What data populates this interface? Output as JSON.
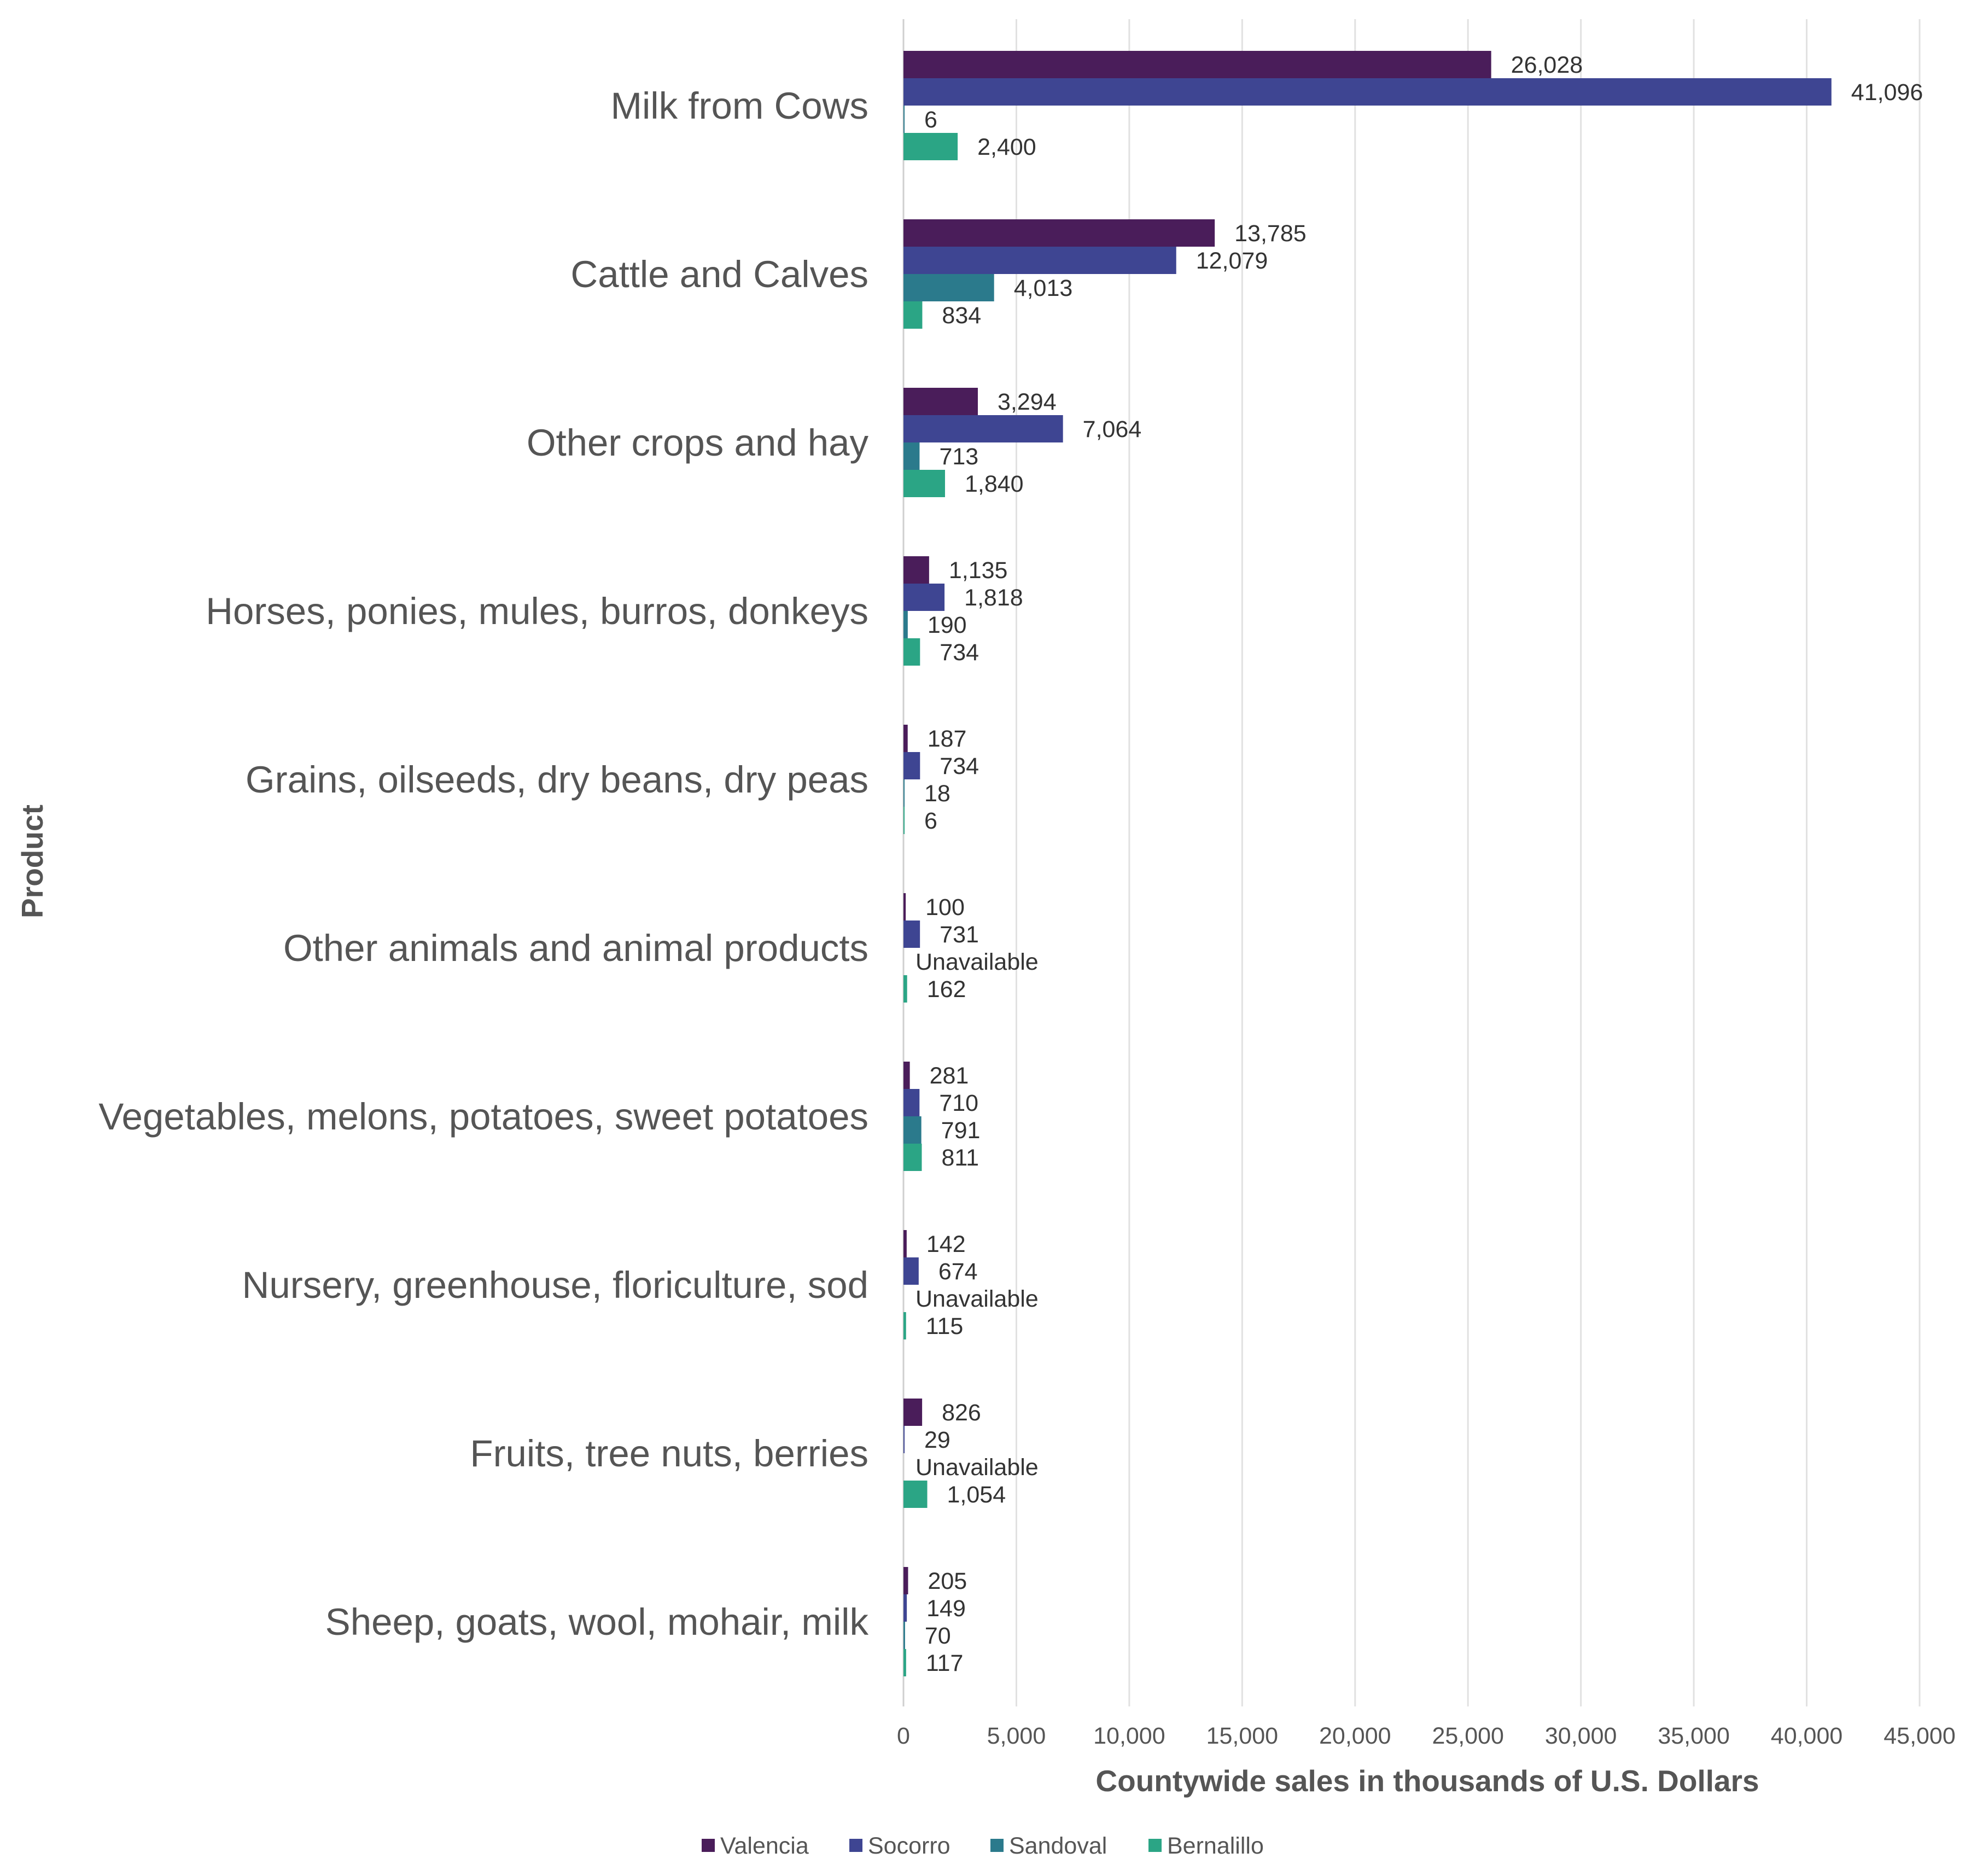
{
  "chart_data": {
    "type": "bar",
    "orientation": "horizontal",
    "title": "",
    "xlabel": "Countywide sales in thousands of U.S. Dollars",
    "ylabel": "Product",
    "xlim": [
      0,
      45000
    ],
    "x_ticks": [
      0,
      5000,
      10000,
      15000,
      20000,
      25000,
      30000,
      35000,
      40000,
      45000
    ],
    "x_tick_labels": [
      "0",
      "5,000",
      "10,000",
      "15,000",
      "20,000",
      "25,000",
      "30,000",
      "35,000",
      "40,000",
      "45,000"
    ],
    "grid": "vertical",
    "legend_position": "bottom",
    "categories": [
      "Milk from Cows",
      "Cattle and Calves",
      "Other crops and hay",
      "Horses, ponies, mules, burros, donkeys",
      "Grains, oilseeds, dry beans, dry peas",
      "Other animals and animal products",
      "Vegetables, melons, potatoes, sweet potatoes",
      "Nursery, greenhouse, floriculture, sod",
      "Fruits, tree nuts, berries",
      "Sheep, goats, wool, mohair, milk"
    ],
    "series": [
      {
        "name": "Valencia",
        "color": "#4a1d5a",
        "values": [
          26028,
          13785,
          3294,
          1135,
          187,
          100,
          281,
          142,
          826,
          205
        ],
        "labels": [
          "26,028",
          "13,785",
          "3,294",
          "1,135",
          "187",
          "100",
          "281",
          "142",
          "826",
          "205"
        ]
      },
      {
        "name": "Socorro",
        "color": "#3e4592",
        "values": [
          41096,
          12079,
          7064,
          1818,
          734,
          731,
          710,
          674,
          29,
          149
        ],
        "labels": [
          "41,096",
          "12,079",
          "7,064",
          "1,818",
          "734",
          "731",
          "710",
          "674",
          "29",
          "149"
        ]
      },
      {
        "name": "Sandoval",
        "color": "#2b7a8c",
        "values": [
          6,
          4013,
          713,
          190,
          18,
          null,
          791,
          null,
          null,
          70
        ],
        "labels": [
          "6",
          "4,013",
          "713",
          "190",
          "18",
          "Unavailable",
          "791",
          "Unavailable",
          "Unavailable",
          "70"
        ]
      },
      {
        "name": "Bernalillo",
        "color": "#2ba585",
        "values": [
          2400,
          834,
          1840,
          734,
          6,
          162,
          811,
          115,
          1054,
          117
        ],
        "labels": [
          "2,400",
          "834",
          "1,840",
          "734",
          "6",
          "162",
          "811",
          "115",
          "1,054",
          "117"
        ]
      }
    ]
  }
}
